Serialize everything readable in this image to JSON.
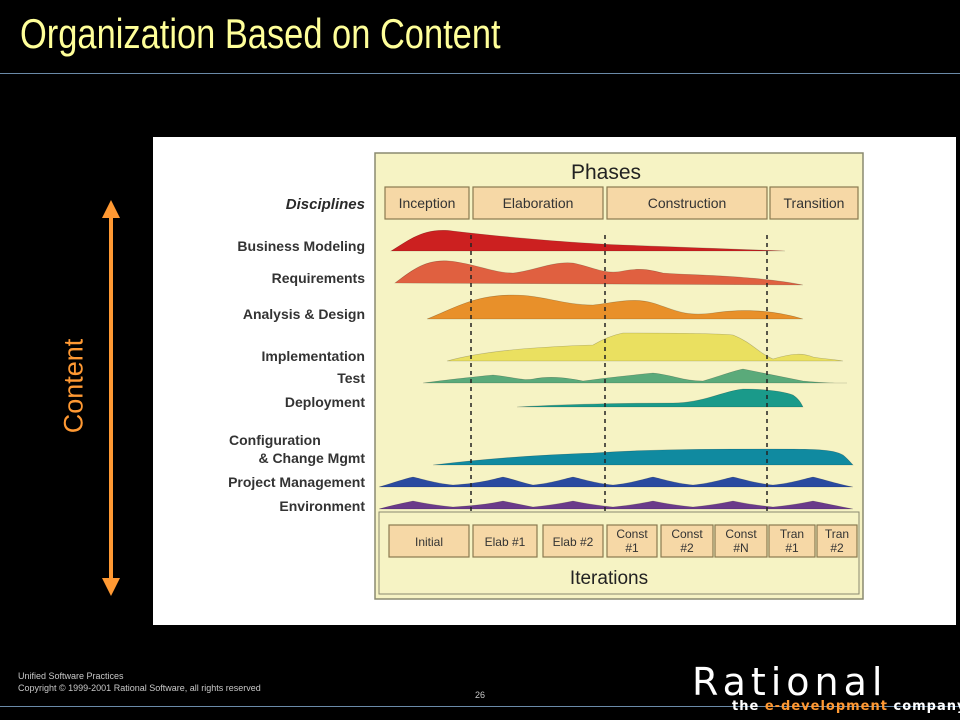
{
  "slide": {
    "title": "Organization Based on Content",
    "side_label": "Content",
    "footer_line1": "Unified Software Practices",
    "footer_line2": "Copyright © 1999-2001 Rational Software, all rights reserved",
    "page_number": "26"
  },
  "logo": {
    "wordmark": "Rational",
    "tagline_prefix": "the ",
    "tagline_accent": "e-development",
    "tagline_suffix": " company"
  },
  "diagram": {
    "phases_title": "Phases",
    "disciplines_heading": "Disciplines",
    "iterations_title": "Iterations",
    "phases": [
      "Inception",
      "Elaboration",
      "Construction",
      "Transition"
    ],
    "disciplines": [
      {
        "label": "Business Modeling",
        "color": "#cc2020"
      },
      {
        "label": "Requirements",
        "color": "#e06040"
      },
      {
        "label": "Analysis & Design",
        "color": "#e8902a"
      },
      {
        "label": "Implementation",
        "color": "#eae060"
      },
      {
        "label": "Test",
        "color": "#5aaa7a"
      },
      {
        "label": "Deployment",
        "color": "#1a9a8a"
      },
      {
        "label": "Configuration",
        "label2": "& Change Mgmt",
        "color": "#108aa0"
      },
      {
        "label": "Project Management",
        "color": "#2a4aa0"
      },
      {
        "label": "Environment",
        "color": "#6a3a8a"
      }
    ],
    "iterations": [
      {
        "line1": "Initial",
        "line2": ""
      },
      {
        "line1": "Elab #1",
        "line2": ""
      },
      {
        "line1": "Elab #2",
        "line2": ""
      },
      {
        "line1": "Const",
        "line2": "#1"
      },
      {
        "line1": "Const",
        "line2": "#2"
      },
      {
        "line1": "Const",
        "line2": "#N"
      },
      {
        "line1": "Tran",
        "line2": "#1"
      },
      {
        "line1": "Tran",
        "line2": "#2"
      }
    ]
  }
}
